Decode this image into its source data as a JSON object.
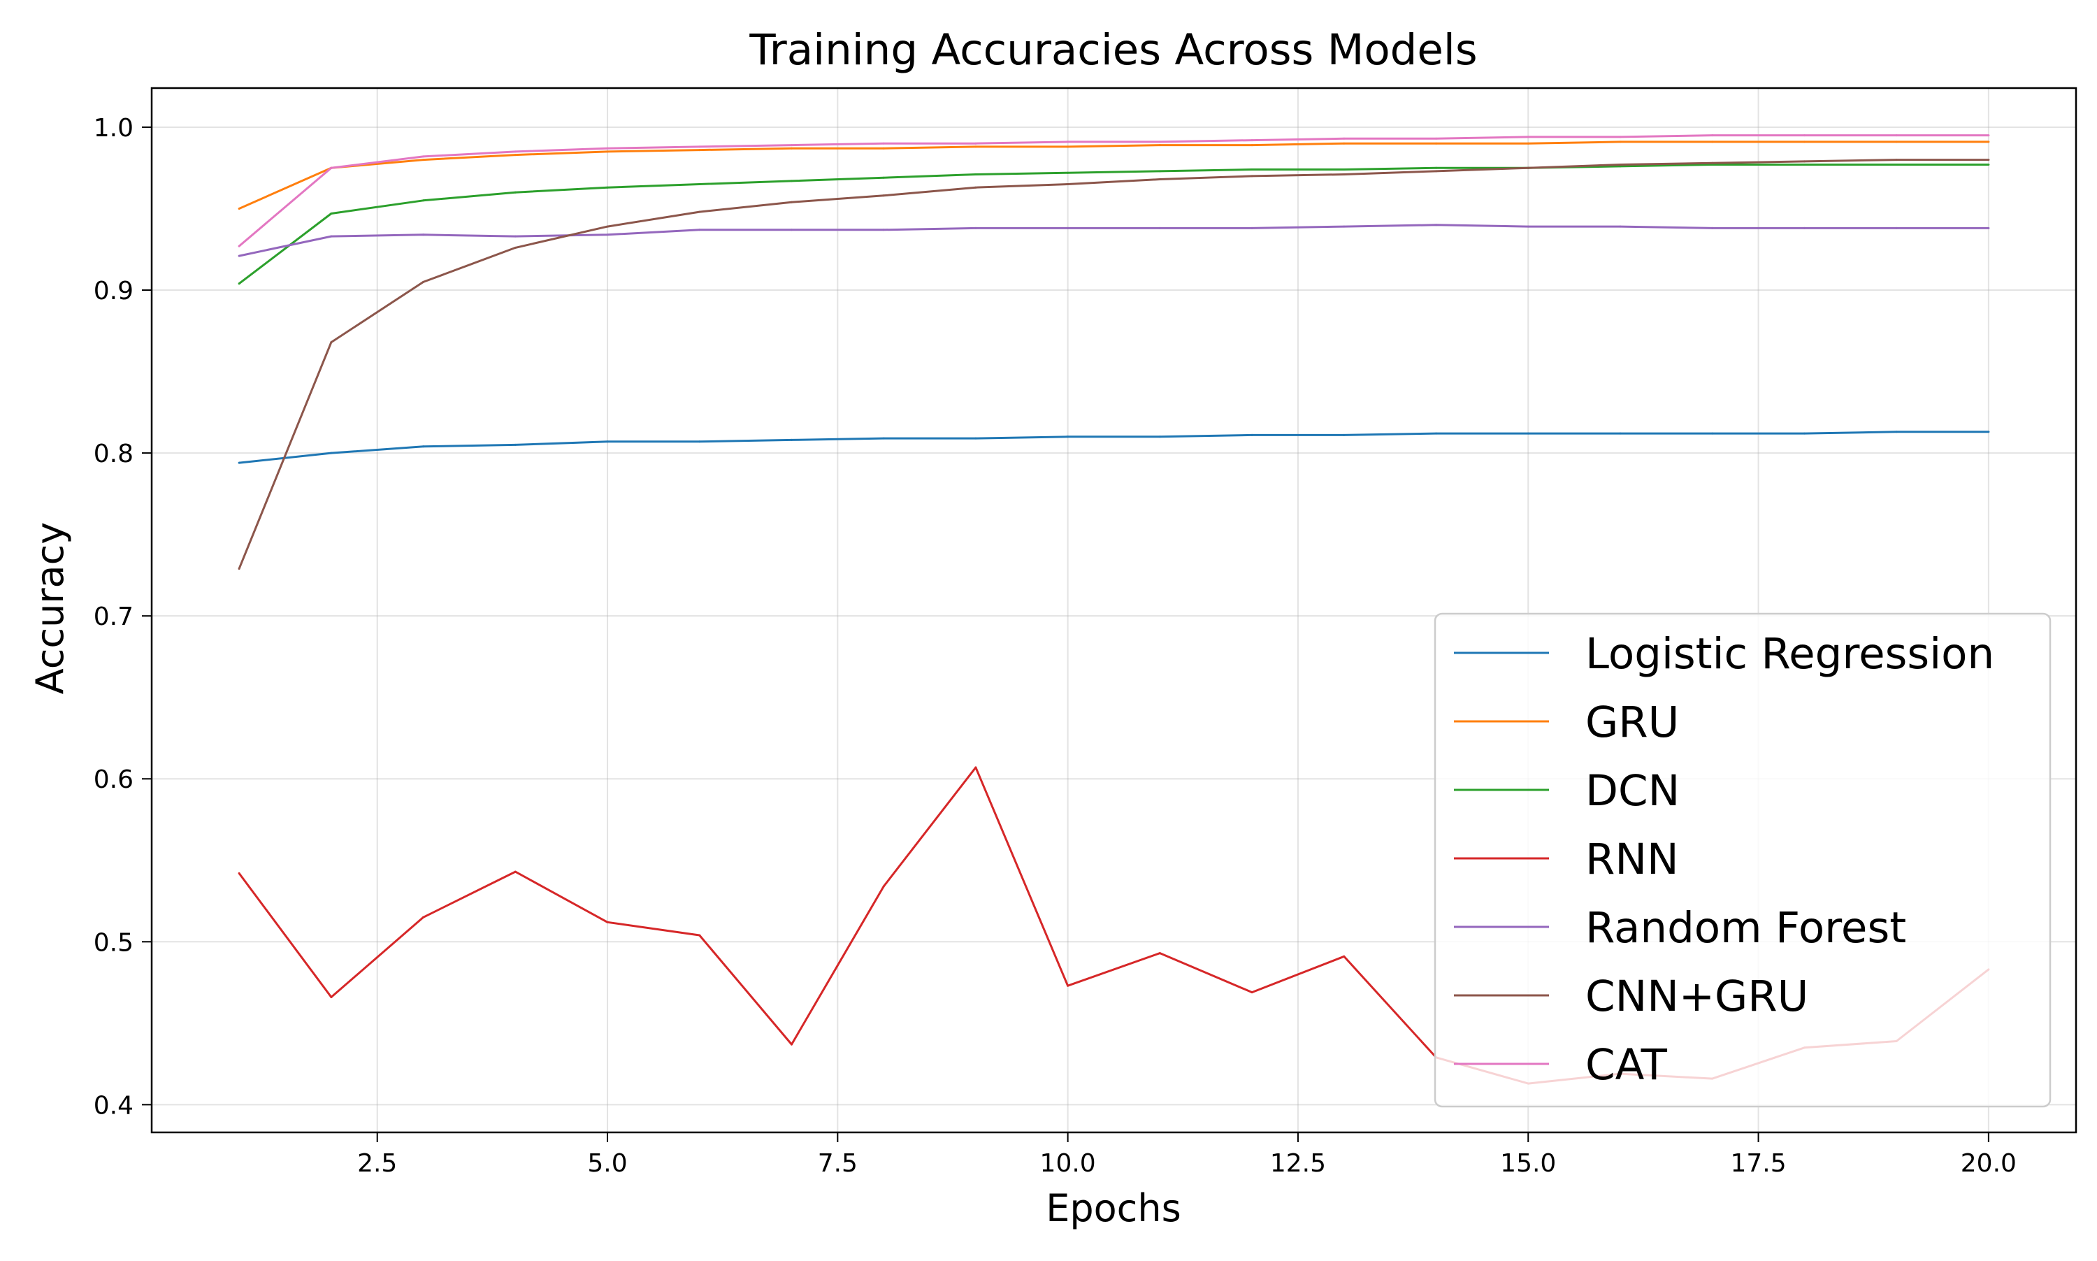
{
  "chart_data": {
    "type": "line",
    "title": "Training Accuracies Across Models",
    "xlabel": "Epochs",
    "ylabel": "Accuracy",
    "xlim": [
      0.05,
      20.95
    ],
    "ylim": [
      0.383,
      1.024
    ],
    "xticks": [
      2.5,
      5.0,
      7.5,
      10.0,
      12.5,
      15.0,
      17.5,
      20.0
    ],
    "xtick_labels": [
      "2.5",
      "5.0",
      "7.5",
      "10.0",
      "12.5",
      "15.0",
      "17.5",
      "20.0"
    ],
    "yticks": [
      0.4,
      0.5,
      0.6,
      0.7,
      0.8,
      0.9,
      1.0
    ],
    "ytick_labels": [
      "0.4",
      "0.5",
      "0.6",
      "0.7",
      "0.8",
      "0.9",
      "1.0"
    ],
    "grid": true,
    "legend_position": "lower-right",
    "x": [
      1,
      2,
      3,
      4,
      5,
      6,
      7,
      8,
      9,
      10,
      11,
      12,
      13,
      14,
      15,
      16,
      17,
      18,
      19,
      20
    ],
    "series": [
      {
        "name": "Logistic Regression",
        "color": "#1f77b4",
        "values": [
          0.794,
          0.8,
          0.804,
          0.805,
          0.807,
          0.807,
          0.808,
          0.809,
          0.809,
          0.81,
          0.81,
          0.811,
          0.811,
          0.812,
          0.812,
          0.812,
          0.812,
          0.812,
          0.813,
          0.813
        ]
      },
      {
        "name": "GRU",
        "color": "#ff7f0e",
        "values": [
          0.95,
          0.975,
          0.98,
          0.983,
          0.985,
          0.986,
          0.987,
          0.987,
          0.988,
          0.988,
          0.989,
          0.989,
          0.99,
          0.99,
          0.99,
          0.991,
          0.991,
          0.991,
          0.991,
          0.991
        ]
      },
      {
        "name": "DCN",
        "color": "#2ca02c",
        "values": [
          0.904,
          0.947,
          0.955,
          0.96,
          0.963,
          0.965,
          0.967,
          0.969,
          0.971,
          0.972,
          0.973,
          0.974,
          0.974,
          0.975,
          0.975,
          0.976,
          0.977,
          0.977,
          0.977,
          0.977
        ]
      },
      {
        "name": "RNN",
        "color": "#d62728",
        "values": [
          0.542,
          0.466,
          0.515,
          0.543,
          0.512,
          0.504,
          0.437,
          0.534,
          0.607,
          0.473,
          0.493,
          0.469,
          0.491,
          0.429,
          0.413,
          0.419,
          0.416,
          0.435,
          0.439,
          0.483
        ]
      },
      {
        "name": "Random Forest",
        "color": "#9467bd",
        "values": [
          0.921,
          0.933,
          0.934,
          0.933,
          0.934,
          0.937,
          0.937,
          0.937,
          0.938,
          0.938,
          0.938,
          0.938,
          0.939,
          0.94,
          0.939,
          0.939,
          0.938,
          0.938,
          0.938,
          0.938
        ]
      },
      {
        "name": "CNN+GRU",
        "color": "#8c564b",
        "values": [
          0.729,
          0.868,
          0.905,
          0.926,
          0.939,
          0.948,
          0.954,
          0.958,
          0.963,
          0.965,
          0.968,
          0.97,
          0.971,
          0.973,
          0.975,
          0.977,
          0.978,
          0.979,
          0.98,
          0.98
        ]
      },
      {
        "name": "CAT",
        "color": "#e377c2",
        "values": [
          0.927,
          0.975,
          0.982,
          0.985,
          0.987,
          0.988,
          0.989,
          0.99,
          0.99,
          0.991,
          0.991,
          0.992,
          0.993,
          0.993,
          0.994,
          0.994,
          0.995,
          0.995,
          0.995,
          0.995
        ]
      }
    ]
  }
}
